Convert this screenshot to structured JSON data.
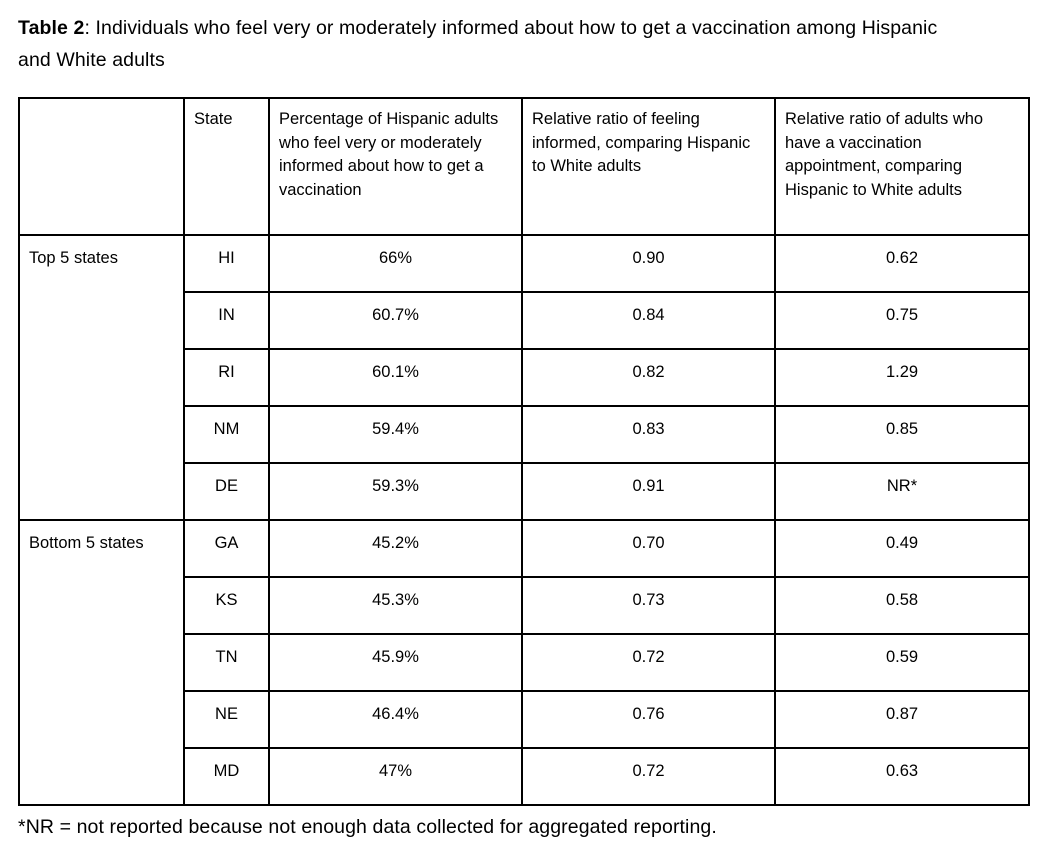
{
  "title": {
    "label": "Table 2",
    "rest": ": Individuals who feel very or moderately informed about how to get a vaccination among Hispanic and White adults"
  },
  "table": {
    "headers": {
      "group": "",
      "state": "State",
      "percentage": "Percentage of Hispanic adults who feel very or moderately informed about how to get a vaccination",
      "ratio_informed": "Relative ratio of feeling informed, comparing Hispanic to White adults",
      "ratio_appointment": "Relative ratio of adults who have a vaccination appointment, comparing Hispanic to White adults"
    },
    "groups": [
      {
        "label": "Top 5 states",
        "rows": [
          {
            "state": "HI",
            "percentage": "66%",
            "ratio_informed": "0.90",
            "ratio_appointment": "0.62"
          },
          {
            "state": "IN",
            "percentage": "60.7%",
            "ratio_informed": "0.84",
            "ratio_appointment": "0.75"
          },
          {
            "state": "RI",
            "percentage": "60.1%",
            "ratio_informed": "0.82",
            "ratio_appointment": "1.29"
          },
          {
            "state": "NM",
            "percentage": "59.4%",
            "ratio_informed": "0.83",
            "ratio_appointment": "0.85"
          },
          {
            "state": "DE",
            "percentage": "59.3%",
            "ratio_informed": "0.91",
            "ratio_appointment": "NR*"
          }
        ]
      },
      {
        "label": "Bottom 5 states",
        "rows": [
          {
            "state": "GA",
            "percentage": "45.2%",
            "ratio_informed": "0.70",
            "ratio_appointment": "0.49"
          },
          {
            "state": "KS",
            "percentage": "45.3%",
            "ratio_informed": "0.73",
            "ratio_appointment": "0.58"
          },
          {
            "state": "TN",
            "percentage": "45.9%",
            "ratio_informed": "0.72",
            "ratio_appointment": "0.59"
          },
          {
            "state": "NE",
            "percentage": "46.4%",
            "ratio_informed": "0.76",
            "ratio_appointment": "0.87"
          },
          {
            "state": "MD",
            "percentage": "47%",
            "ratio_informed": "0.72",
            "ratio_appointment": "0.63"
          }
        ]
      }
    ]
  },
  "footnote": "*NR = not reported because not enough data collected for aggregated reporting.",
  "colors": {
    "background": "#ffffff",
    "text": "#000000",
    "border": "#000000"
  }
}
